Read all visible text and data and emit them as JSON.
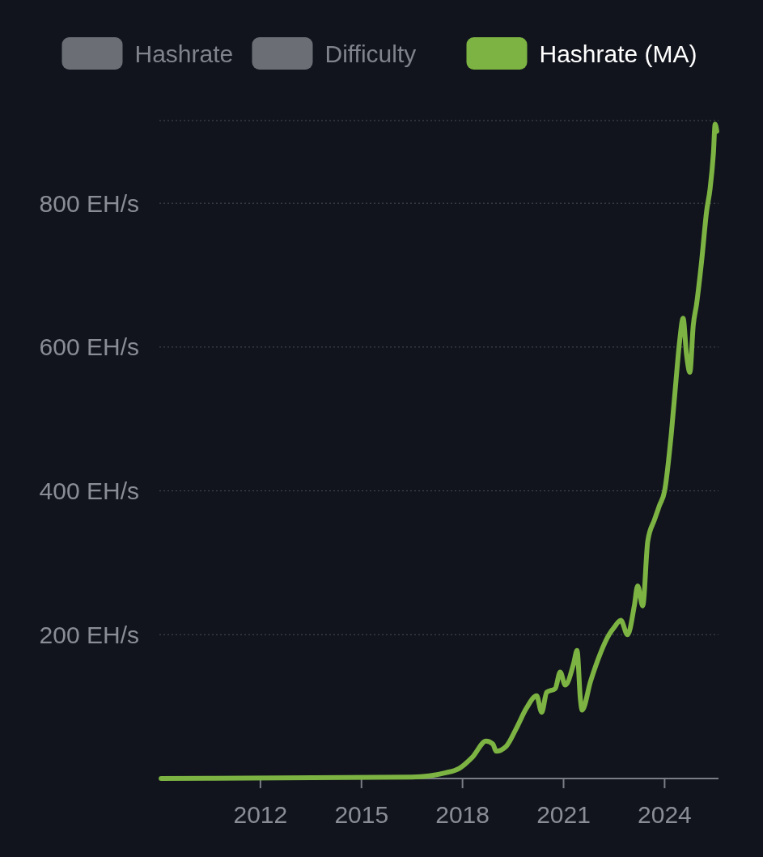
{
  "chart_data": {
    "type": "line",
    "xlim": [
      2009,
      2025.6
    ],
    "xticks": [
      2012,
      2015,
      2018,
      2021,
      2024
    ],
    "ylim": [
      0,
      915
    ],
    "yticks": [
      {
        "value": 0,
        "label": null
      },
      {
        "value": 200,
        "label": "200 EH/s"
      },
      {
        "value": 400,
        "label": "400 EH/s"
      },
      {
        "value": 600,
        "label": "600 EH/s"
      },
      {
        "value": 800,
        "label": "800 EH/s"
      },
      {
        "value": 915,
        "label": null
      }
    ],
    "grid": "y",
    "legend": "top",
    "x": [
      2009.05,
      2016.5,
      2017.5,
      2017.9,
      2018.3,
      2018.7,
      2018.9,
      2019.0,
      2019.3,
      2019.6,
      2019.9,
      2020.2,
      2020.35,
      2020.5,
      2020.75,
      2020.9,
      2021.05,
      2021.3,
      2021.4,
      2021.5,
      2021.55,
      2021.8,
      2022.1,
      2022.35,
      2022.5,
      2022.7,
      2022.9,
      2023.1,
      2023.2,
      2023.35,
      2023.5,
      2023.7,
      2023.85,
      2024.0,
      2024.2,
      2024.35,
      2024.45,
      2024.55,
      2024.65,
      2024.75,
      2024.85,
      2024.95,
      2025.1,
      2025.25,
      2025.35,
      2025.45,
      2025.5,
      2025.55
    ],
    "series": [
      {
        "name": "Hashrate",
        "color": "#6b6e75",
        "values": [
          null,
          null,
          null,
          null,
          null,
          null,
          null,
          null,
          null,
          null,
          null,
          null,
          null,
          null,
          null,
          null,
          null,
          null,
          null,
          null,
          null,
          null,
          null,
          null,
          null,
          null,
          null,
          null,
          null,
          null,
          null,
          null,
          null,
          null,
          null,
          null,
          null,
          null,
          null,
          null,
          null,
          null,
          null,
          null,
          null,
          null,
          null,
          null
        ]
      },
      {
        "name": "Difficulty",
        "color": "#6b6e75",
        "values": [
          null,
          null,
          null,
          null,
          null,
          null,
          null,
          null,
          null,
          null,
          null,
          null,
          null,
          null,
          null,
          null,
          null,
          null,
          null,
          null,
          null,
          null,
          null,
          null,
          null,
          null,
          null,
          null,
          null,
          null,
          null,
          null,
          null,
          null,
          null,
          null,
          null,
          null,
          null,
          null,
          null,
          null,
          null,
          null,
          null,
          null,
          null,
          null
        ]
      },
      {
        "name": "Hashrate (MA)",
        "color": "#7cb342",
        "values": [
          0,
          2,
          8,
          14,
          30,
          52,
          48,
          38,
          45,
          70,
          98,
          115,
          92,
          120,
          125,
          148,
          130,
          160,
          178,
          110,
          95,
          135,
          175,
          200,
          210,
          220,
          200,
          240,
          268,
          240,
          330,
          360,
          380,
          400,
          480,
          560,
          610,
          640,
          590,
          565,
          630,
          660,
          720,
          790,
          820,
          870,
          910,
          900
        ]
      }
    ]
  }
}
